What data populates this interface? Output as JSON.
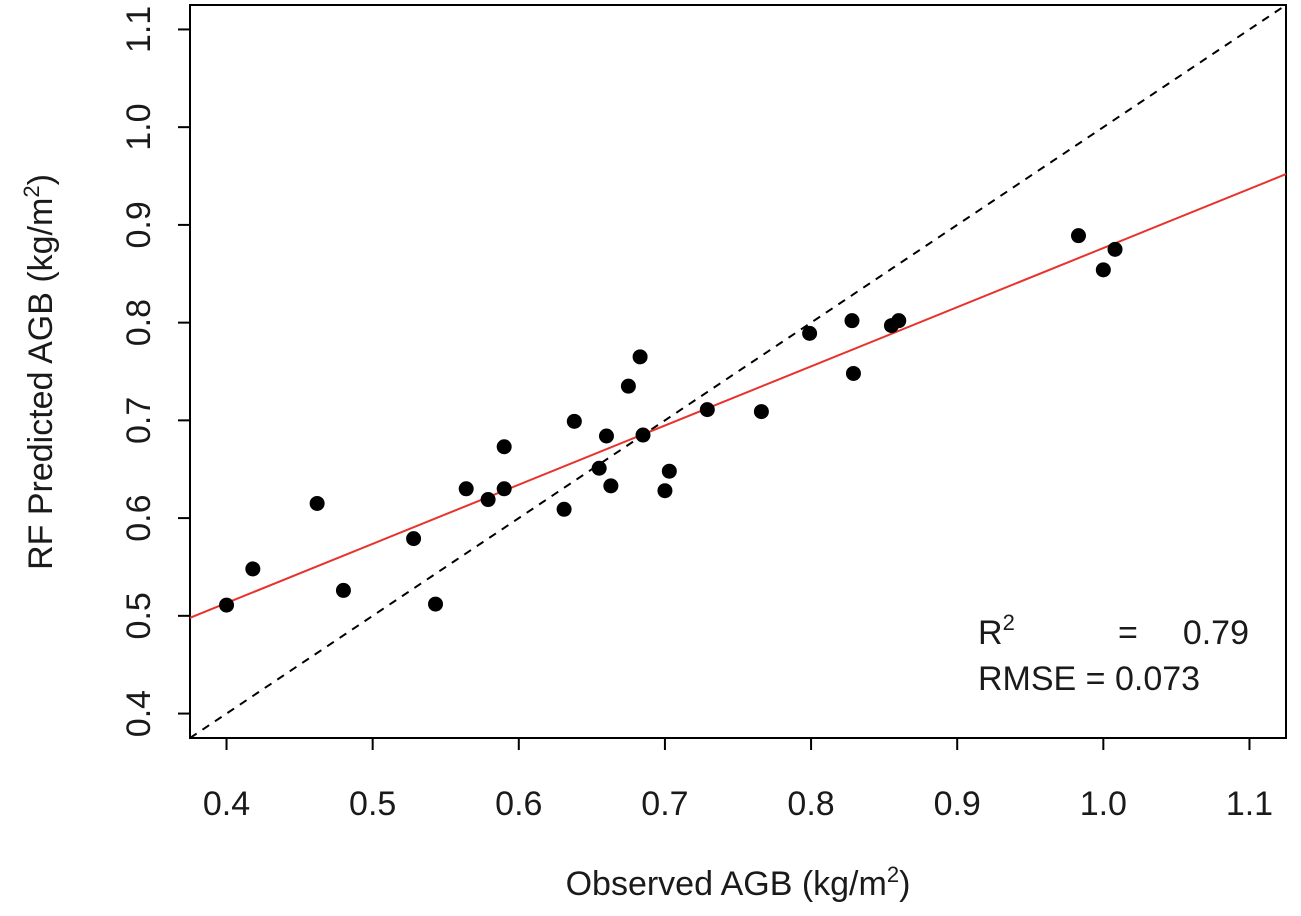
{
  "chart_data": {
    "type": "scatter",
    "title": "",
    "xlabel": {
      "main": "Observed AGB (kg/m",
      "sup": "2",
      "tail": ")"
    },
    "ylabel": {
      "main": "RF Predicted AGB (kg/m",
      "sup": "2",
      "tail": ")"
    },
    "xlim": [
      0.375,
      1.125
    ],
    "ylim": [
      0.375,
      1.125
    ],
    "xticks": [
      0.4,
      0.5,
      0.6,
      0.7,
      0.8,
      0.9,
      1.0,
      1.1
    ],
    "xtick_labels": [
      "0.4",
      "0.5",
      "0.6",
      "0.7",
      "0.8",
      "0.9",
      "1.0",
      "1.1"
    ],
    "yticks": [
      0.4,
      0.5,
      0.6,
      0.7,
      0.8,
      0.9,
      1.0,
      1.1
    ],
    "ytick_labels": [
      "0.4",
      "0.5",
      "0.6",
      "0.7",
      "0.8",
      "0.9",
      "1.0",
      "1.1"
    ],
    "grid": false,
    "series": [
      {
        "name": "observations",
        "color": "#000000",
        "x": [
          0.4,
          0.418,
          0.462,
          0.48,
          0.528,
          0.543,
          0.564,
          0.579,
          0.59,
          0.59,
          0.631,
          0.638,
          0.655,
          0.66,
          0.663,
          0.675,
          0.683,
          0.685,
          0.7,
          0.703,
          0.729,
          0.766,
          0.799,
          0.828,
          0.829,
          0.855,
          0.86,
          0.983,
          1.0,
          1.008
        ],
        "y": [
          0.511,
          0.548,
          0.615,
          0.526,
          0.579,
          0.512,
          0.63,
          0.619,
          0.673,
          0.63,
          0.609,
          0.699,
          0.651,
          0.684,
          0.633,
          0.735,
          0.765,
          0.685,
          0.628,
          0.648,
          0.711,
          0.709,
          0.789,
          0.802,
          0.748,
          0.797,
          0.802,
          0.889,
          0.854,
          0.875
        ]
      }
    ],
    "lines": [
      {
        "name": "1:1 line",
        "style": "dashed",
        "color": "#000000",
        "x": [
          0.375,
          1.125
        ],
        "y": [
          0.375,
          1.125
        ]
      },
      {
        "name": "regression fit",
        "style": "solid",
        "color": "#e8322b",
        "x": [
          0.375,
          1.125
        ],
        "y": [
          0.498,
          0.952
        ]
      }
    ],
    "annotations": {
      "r2_label": "R",
      "r2_sup": "2",
      "r2_eq": "=",
      "r2_value": "0.79",
      "rmse_text": "RMSE = 0.073",
      "placement": "bottom-right"
    }
  }
}
